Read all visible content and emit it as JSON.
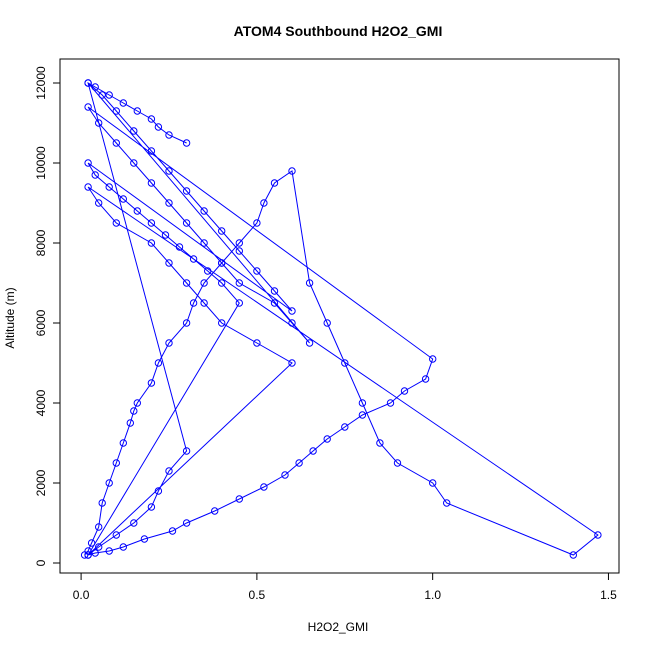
{
  "chart_data": {
    "type": "line",
    "title": "ATOM4 Southbound H2O2_GMI",
    "xlabel": "H2O2_GMI",
    "ylabel": "Altitude (m)",
    "xlim": [
      -0.06,
      1.53
    ],
    "ylim": [
      -250,
      12600
    ],
    "x_ticks": [
      0,
      0.5,
      1,
      1.5
    ],
    "x_tick_labels": [
      "0.0",
      "0.5",
      "1.0",
      "1.5"
    ],
    "y_ticks": [
      0,
      2000,
      4000,
      6000,
      8000,
      10000,
      12000
    ],
    "y_tick_labels": [
      "0",
      "2000",
      "4000",
      "6000",
      "8000",
      "10000",
      "12000"
    ],
    "grid": false,
    "legend": "none",
    "colors": {
      "series": "#0000ff",
      "axis": "#000000",
      "background": "#ffffff"
    },
    "marker": "open-circle",
    "series": [
      {
        "values_note": "",
        "x": [
          0.01,
          0.02,
          0.03,
          0.05,
          0.06,
          0.08,
          0.1,
          0.12,
          0.14,
          0.15,
          0.16,
          0.2,
          0.22,
          0.25,
          0.3,
          0.32,
          0.35,
          0.4,
          0.45,
          0.5,
          0.52,
          0.55,
          0.6,
          0.65,
          0.7,
          0.75,
          0.8,
          0.85,
          0.9,
          1.0,
          1.04,
          1.4,
          1.47,
          0.02,
          0.05,
          0.1,
          0.2,
          0.25,
          0.3,
          0.35,
          0.4,
          0.5,
          0.6,
          0.02,
          0.04,
          0.08,
          0.12,
          0.18,
          0.26,
          0.3,
          0.38,
          0.45,
          0.52,
          0.58,
          0.62,
          0.66,
          0.7,
          0.75,
          0.8,
          0.88,
          0.92,
          0.98,
          1.0,
          0.02,
          0.05,
          0.1,
          0.15,
          0.2,
          0.25,
          0.3,
          0.35,
          0.4,
          0.45,
          0.55,
          0.6,
          0.65,
          0.02,
          0.06,
          0.1,
          0.15,
          0.2,
          0.25,
          0.3,
          0.35,
          0.4,
          0.45,
          0.5,
          0.55,
          0.6,
          0.02,
          0.04,
          0.08,
          0.12,
          0.16,
          0.2,
          0.24,
          0.28,
          0.32,
          0.36,
          0.4,
          0.45,
          0.02,
          0.05,
          0.1,
          0.15,
          0.2,
          0.22,
          0.25,
          0.3,
          0.02,
          0.04,
          0.08,
          0.12,
          0.16,
          0.2,
          0.22,
          0.25,
          0.3
        ],
        "y": [
          200,
          300,
          500,
          900,
          1500,
          2000,
          2500,
          3000,
          3500,
          3800,
          4000,
          4500,
          5000,
          5500,
          6000,
          6500,
          7000,
          7500,
          8000,
          8500,
          9000,
          9500,
          9800,
          7000,
          6000,
          5000,
          4000,
          3000,
          2500,
          2000,
          1500,
          200,
          700,
          9400,
          9000,
          8500,
          8000,
          7500,
          7000,
          6500,
          6000,
          5500,
          5000,
          200,
          250,
          300,
          400,
          600,
          800,
          1000,
          1300,
          1600,
          1900,
          2200,
          2500,
          2800,
          3100,
          3400,
          3700,
          4000,
          4300,
          4600,
          5100,
          11400,
          11000,
          10500,
          10000,
          9500,
          9000,
          8500,
          8000,
          7500,
          7000,
          6500,
          6000,
          5500,
          12000,
          11700,
          11300,
          10800,
          10300,
          9800,
          9300,
          8800,
          8300,
          7800,
          7300,
          6800,
          6300,
          10000,
          9700,
          9400,
          9100,
          8800,
          8500,
          8200,
          7900,
          7600,
          7300,
          7000,
          6500,
          200,
          400,
          700,
          1000,
          1400,
          1800,
          2300,
          2800,
          12000,
          11900,
          11700,
          11500,
          11300,
          11100,
          10900,
          10700,
          10500
        ]
      }
    ]
  }
}
